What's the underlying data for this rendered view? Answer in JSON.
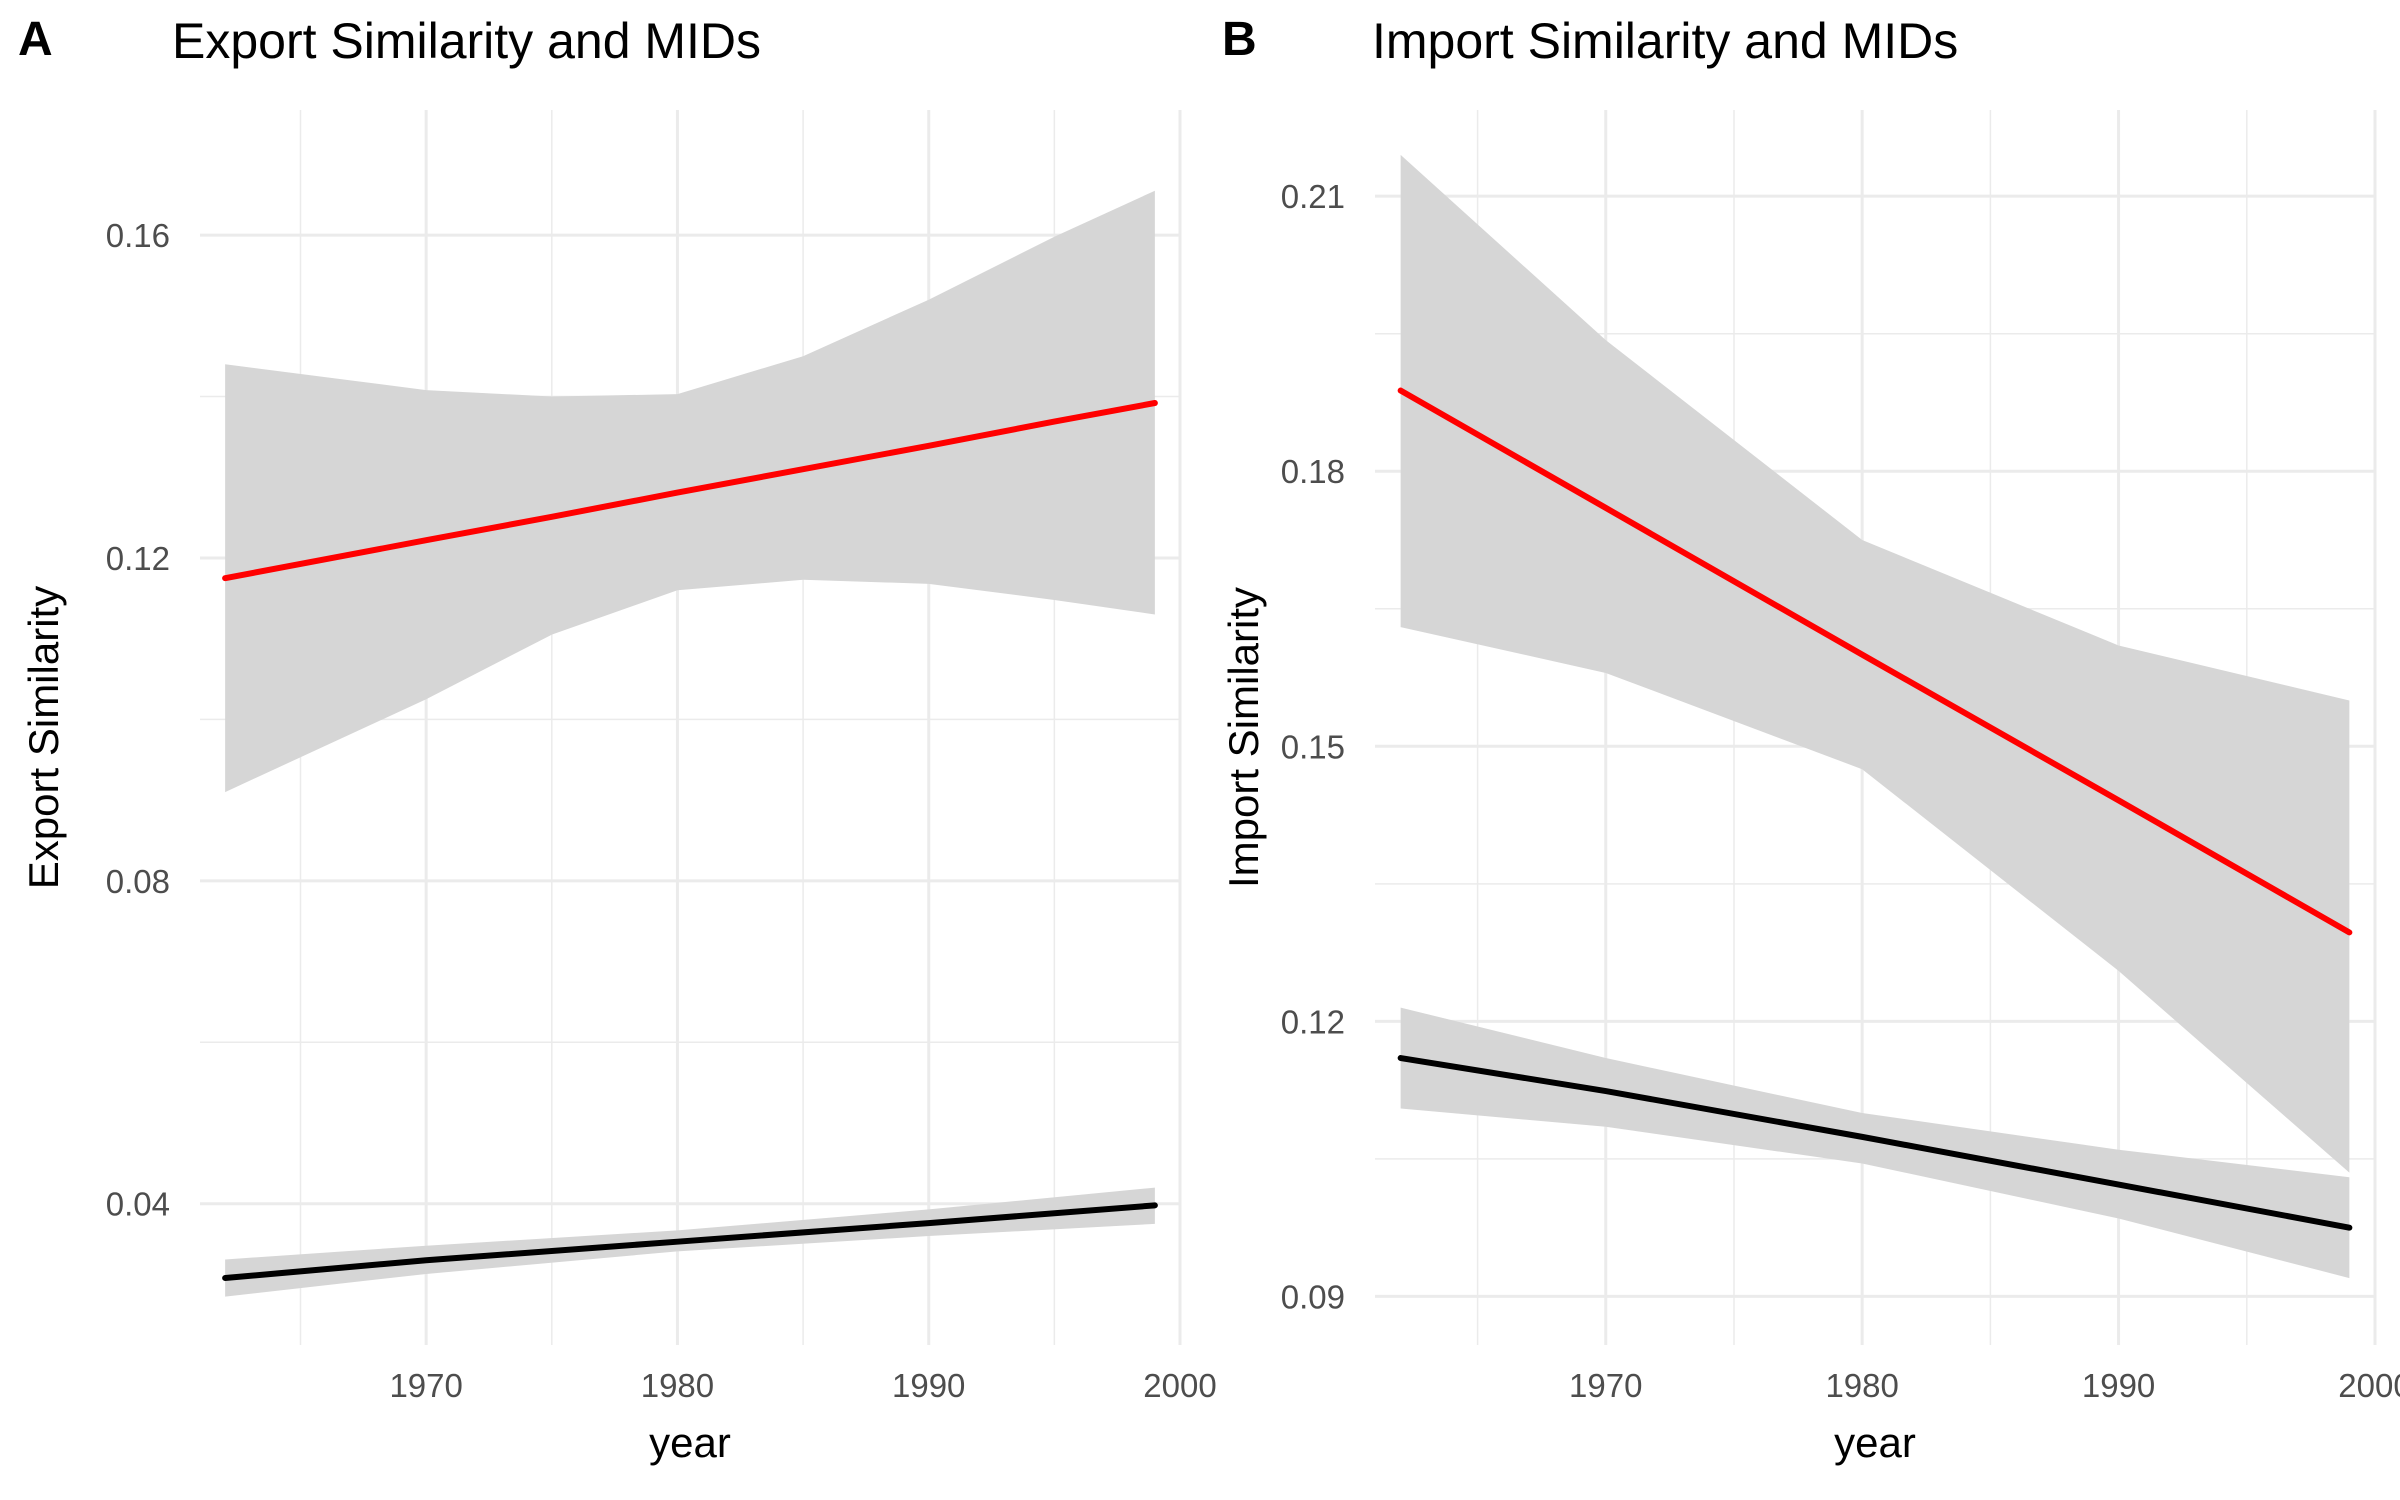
{
  "chart_data": [
    {
      "panel_label": "A",
      "type": "line",
      "title": "Export Similarity and MIDs",
      "xlabel": "year",
      "ylabel": "Export Similarity",
      "xlim": [
        1961,
        2000
      ],
      "ylim": [
        0.0225,
        0.1755
      ],
      "x_ticks": [
        1970,
        1980,
        1990,
        2000
      ],
      "x_minor_ticks": [
        1965,
        1975,
        1985,
        1995
      ],
      "y_ticks": [
        0.04,
        0.08,
        0.12,
        0.16
      ],
      "y_minor_ticks": [
        0.06,
        0.1,
        0.14
      ],
      "y_tick_labels": [
        "0.04",
        "0.08",
        "0.12",
        "0.16"
      ],
      "x_tick_labels": [
        "1970",
        "1980",
        "1990",
        "2000"
      ],
      "grid": true,
      "series": [
        {
          "color": "#ff0000",
          "x": [
            1962,
            1970,
            1975,
            1980,
            1985,
            1990,
            1995,
            1999
          ],
          "y": [
            0.1175,
            0.1222,
            0.1251,
            0.1281,
            0.131,
            0.1339,
            0.1369,
            0.1392
          ],
          "ci_lower": [
            0.091,
            0.1025,
            0.1105,
            0.116,
            0.1173,
            0.1168,
            0.1148,
            0.113
          ],
          "ci_upper": [
            0.144,
            0.1408,
            0.14,
            0.1403,
            0.145,
            0.152,
            0.1598,
            0.1655
          ]
        },
        {
          "color": "#000000",
          "x": [
            1962,
            1970,
            1980,
            1990,
            1999
          ],
          "y": [
            0.0308,
            0.033,
            0.0353,
            0.0376,
            0.0398
          ],
          "ci_lower": [
            0.0285,
            0.0313,
            0.0341,
            0.036,
            0.0375
          ],
          "ci_upper": [
            0.0331,
            0.0348,
            0.0367,
            0.0393,
            0.042
          ]
        }
      ]
    },
    {
      "panel_label": "B",
      "type": "line",
      "title": "Import Similarity and MIDs",
      "xlabel": "year",
      "ylabel": "Import Similarity",
      "xlim": [
        1961,
        2000
      ],
      "ylim": [
        0.0847,
        0.2194
      ],
      "x_ticks": [
        1970,
        1980,
        1990,
        2000
      ],
      "x_minor_ticks": [
        1965,
        1975,
        1985,
        1995
      ],
      "y_ticks": [
        0.09,
        0.12,
        0.15,
        0.18,
        0.21
      ],
      "y_minor_ticks": [
        0.105,
        0.135,
        0.165,
        0.195
      ],
      "y_tick_labels": [
        "0.09",
        "0.12",
        "0.15",
        "0.18",
        "0.21"
      ],
      "x_tick_labels": [
        "1970",
        "1980",
        "1990",
        "2000"
      ],
      "grid": true,
      "series": [
        {
          "color": "#ff0000",
          "x": [
            1962,
            1970,
            1980,
            1990,
            1999
          ],
          "y": [
            0.1888,
            0.176,
            0.16,
            0.1441,
            0.1297
          ],
          "ci_lower": [
            0.163,
            0.158,
            0.1475,
            0.1255,
            0.1035
          ],
          "ci_upper": [
            0.2145,
            0.1943,
            0.1725,
            0.161,
            0.155
          ]
        },
        {
          "color": "#000000",
          "x": [
            1962,
            1970,
            1980,
            1990,
            1999
          ],
          "y": [
            0.116,
            0.1124,
            0.1074,
            0.1022,
            0.0975
          ],
          "ci_lower": [
            0.1105,
            0.1085,
            0.1045,
            0.0985,
            0.092
          ],
          "ci_upper": [
            0.1215,
            0.116,
            0.11,
            0.106,
            0.103
          ]
        }
      ]
    }
  ]
}
